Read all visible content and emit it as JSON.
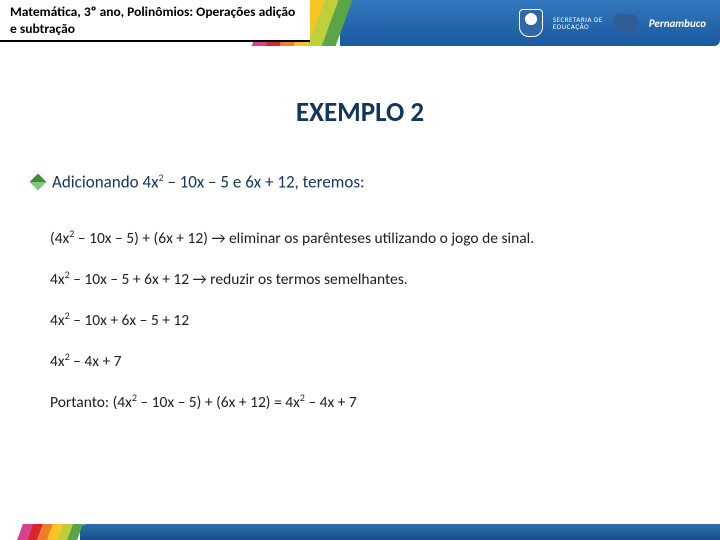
{
  "header": {
    "breadcrumb": "Matemática, 3º ano, Polinômios: Operações adição e subtração",
    "logo_small": "SECRETARIA DE",
    "logo_big": "Pernambuco",
    "logo_sec": "EDUCAÇÃO"
  },
  "title": "EXEMPLO 2",
  "intro": {
    "prefix": "Adicionando 4x",
    "exp1": "2",
    "mid": " – 10x – 5 e 6x + 12, teremos:"
  },
  "steps": [
    {
      "pre": "(4x",
      "sup": "2",
      "post": " – 10x – 5) + (6x + 12) → eliminar os parênteses utilizando o jogo de sinal."
    },
    {
      "pre": "4x",
      "sup": "2",
      "post": " – 10x – 5 + 6x + 12 → reduzir os termos semelhantes."
    },
    {
      "pre": "4x",
      "sup": "2",
      "post": " – 10x + 6x – 5 + 12"
    },
    {
      "pre": "4x",
      "sup": "2",
      "post": " – 4x + 7"
    },
    {
      "pre": "Portanto: (4x",
      "sup": "2",
      "post_a": " – 10x – 5) + (6x + 12) = 4x",
      "sup2": "2",
      "post_b": " – 4x + 7"
    }
  ],
  "colors": {
    "title": "#13365e",
    "text": "#202020",
    "blue_grad_top": "#3378bd",
    "blue_grad_bottom": "#1a5a9e"
  }
}
